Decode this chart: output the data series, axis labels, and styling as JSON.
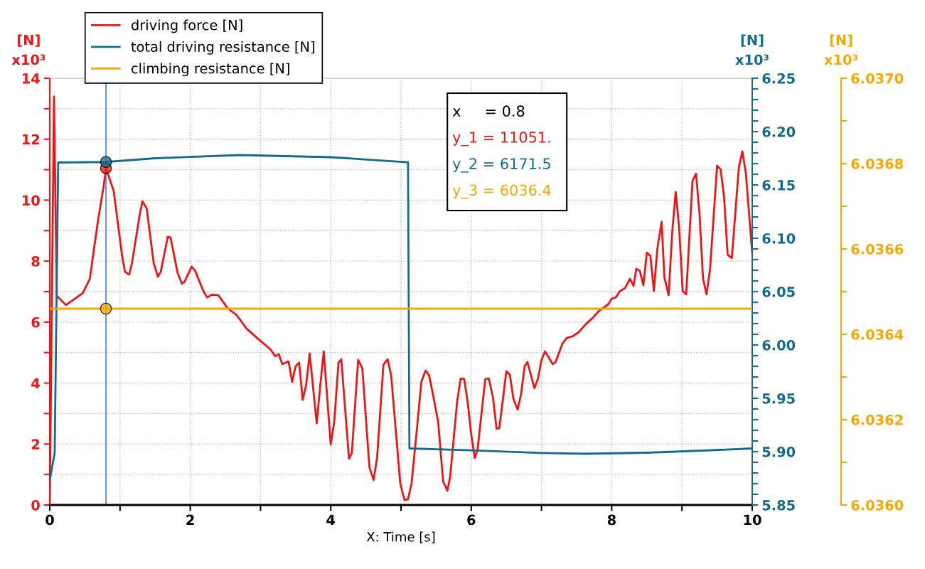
{
  "chart_data": {
    "type": "line",
    "xlabel": "X: Time [s]",
    "ylabel": "[N]\nx10³",
    "y2label": "[N]\nx10³",
    "y3label": "[N]\nx10³",
    "legend": "top left",
    "grid": true,
    "line_style": "solid",
    "marker": "none",
    "xlim": [
      0,
      10
    ],
    "xticks": [
      0,
      {
        "value": 1,
        "label": null
      },
      2,
      {
        "value": 3,
        "label": null
      },
      4,
      {
        "value": 5,
        "label": null
      },
      6,
      {
        "value": 7,
        "label": null
      },
      8,
      {
        "value": 9,
        "label": null
      },
      10
    ],
    "ylim": [
      0,
      14
    ],
    "yticks": [
      0,
      {
        "value": 1,
        "label": null
      },
      2,
      {
        "value": 3,
        "label": null
      },
      4,
      {
        "value": 5,
        "label": null
      },
      6,
      {
        "value": 7,
        "label": null
      },
      8,
      {
        "value": 9,
        "label": null
      },
      10,
      {
        "value": 11,
        "label": null
      },
      12,
      {
        "value": 13,
        "label": null
      },
      14
    ],
    "y2lim": [
      5.85,
      6.25
    ],
    "y2ticks": [
      {
        "value": 5.85,
        "label": "5.85"
      },
      {
        "value": 5.86,
        "label": null
      },
      {
        "value": 5.87,
        "label": null
      },
      {
        "value": 5.88,
        "label": null
      },
      {
        "value": 5.89,
        "label": null
      },
      {
        "value": 5.9,
        "label": "5.90"
      },
      {
        "value": 5.91,
        "label": null
      },
      {
        "value": 5.92,
        "label": null
      },
      {
        "value": 5.93,
        "label": null
      },
      {
        "value": 5.94,
        "label": null
      },
      {
        "value": 5.95,
        "label": "5.95"
      },
      {
        "value": 5.96,
        "label": null
      },
      {
        "value": 5.97,
        "label": null
      },
      {
        "value": 5.98,
        "label": null
      },
      {
        "value": 5.99,
        "label": null
      },
      {
        "value": 6.0,
        "label": "6.00"
      },
      {
        "value": 6.01,
        "label": null
      },
      {
        "value": 6.02,
        "label": null
      },
      {
        "value": 6.03,
        "label": null
      },
      {
        "value": 6.04,
        "label": null
      },
      {
        "value": 6.05,
        "label": "6.05"
      },
      {
        "value": 6.06,
        "label": null
      },
      {
        "value": 6.07,
        "label": null
      },
      {
        "value": 6.08,
        "label": null
      },
      {
        "value": 6.09,
        "label": null
      },
      {
        "value": 6.1,
        "label": "6.10"
      },
      {
        "value": 6.11,
        "label": null
      },
      {
        "value": 6.12,
        "label": null
      },
      {
        "value": 6.13,
        "label": null
      },
      {
        "value": 6.14,
        "label": null
      },
      {
        "value": 6.15,
        "label": "6.15"
      },
      {
        "value": 6.16,
        "label": null
      },
      {
        "value": 6.17,
        "label": null
      },
      {
        "value": 6.18,
        "label": null
      },
      {
        "value": 6.19,
        "label": null
      },
      {
        "value": 6.2,
        "label": "6.20"
      },
      {
        "value": 6.21,
        "label": null
      },
      {
        "value": 6.22,
        "label": null
      },
      {
        "value": 6.23,
        "label": null
      },
      {
        "value": 6.24,
        "label": null
      },
      {
        "value": 6.25,
        "label": "6.25"
      }
    ],
    "y3lim": [
      6.036,
      6.037
    ],
    "y3ticks": [
      {
        "value": 6.036,
        "label": "6.0360"
      },
      {
        "value": 6.0361,
        "label": null
      },
      {
        "value": 6.0362,
        "label": "6.0362"
      },
      {
        "value": 6.0363,
        "label": null
      },
      {
        "value": 6.0364,
        "label": "6.0364"
      },
      {
        "value": 6.0365,
        "label": null
      },
      {
        "value": 6.0366,
        "label": "6.0366"
      },
      {
        "value": 6.0367,
        "label": null
      },
      {
        "value": 6.0368,
        "label": "6.0368"
      },
      {
        "value": 6.0369,
        "label": null
      },
      {
        "value": 6.037,
        "label": "6.0370"
      }
    ],
    "ref_lines": [
      {
        "axis": "x",
        "value": 0.8,
        "color": "#4a90d9",
        "line_style": "solid"
      }
    ],
    "annotations": [
      "x     = 0.8",
      "y_1 = 11051.",
      "y_2 = 6171.5",
      "y_3 = 6036.4"
    ],
    "series": [
      {
        "name": "driving force [N]",
        "color": "#f01414",
        "x": [
          0,
          0.06,
          0.1,
          0.23,
          0.47,
          0.57,
          0.69,
          0.77,
          0.8,
          0.91,
          1.03,
          1.07,
          1.13,
          1.17,
          1.28,
          1.32,
          1.38,
          1.48,
          1.54,
          1.58,
          1.68,
          1.72,
          1.82,
          1.88,
          1.92,
          2.02,
          2.07,
          2.19,
          2.24,
          2.31,
          2.4,
          2.53,
          2.66,
          2.8,
          2.97,
          3.14,
          3.21,
          3.26,
          3.31,
          3.4,
          3.45,
          3.5,
          3.55,
          3.6,
          3.65,
          3.7,
          3.8,
          3.85,
          3.9,
          4.0,
          4.05,
          4.11,
          4.15,
          4.26,
          4.3,
          4.39,
          4.45,
          4.55,
          4.61,
          4.66,
          4.75,
          4.81,
          4.86,
          4.99,
          5.05,
          5.1,
          5.15,
          5.23,
          5.29,
          5.35,
          5.4,
          5.45,
          5.53,
          5.6,
          5.66,
          5.7,
          5.8,
          5.85,
          5.9,
          5.95,
          6.0,
          6.05,
          6.09,
          6.2,
          6.25,
          6.31,
          6.36,
          6.4,
          6.5,
          6.55,
          6.6,
          6.66,
          6.71,
          6.76,
          6.8,
          6.9,
          6.95,
          7.0,
          7.05,
          7.16,
          7.2,
          7.3,
          7.36,
          7.44,
          7.53,
          7.63,
          7.73,
          7.82,
          7.95,
          8.0,
          8.06,
          8.11,
          8.19,
          8.26,
          8.31,
          8.35,
          8.4,
          8.45,
          8.5,
          8.55,
          8.6,
          8.65,
          8.71,
          8.75,
          8.81,
          8.86,
          8.91,
          8.96,
          9.01,
          9.06,
          9.15,
          9.2,
          9.25,
          9.3,
          9.35,
          9.4,
          9.5,
          9.55,
          9.6,
          9.65,
          9.71,
          9.81,
          9.86,
          9.91,
          10.0
        ],
        "values": [
          0,
          13.4,
          6.86,
          6.56,
          6.95,
          7.42,
          9.38,
          10.5,
          11.05,
          10.3,
          8.17,
          7.65,
          7.56,
          7.93,
          9.52,
          9.96,
          9.73,
          7.93,
          7.49,
          7.65,
          8.8,
          8.77,
          7.61,
          7.26,
          7.33,
          7.82,
          7.68,
          7.0,
          6.81,
          6.9,
          6.88,
          6.46,
          6.23,
          5.79,
          5.44,
          5.11,
          4.88,
          4.95,
          4.62,
          4.71,
          4.04,
          4.55,
          4.67,
          3.45,
          3.94,
          4.97,
          2.68,
          3.9,
          5.04,
          1.98,
          2.73,
          4.67,
          4.78,
          1.52,
          1.7,
          4.76,
          4.48,
          1.24,
          0.82,
          1.56,
          4.6,
          4.78,
          4.25,
          0.7,
          0.16,
          0.19,
          0.7,
          2.57,
          4.04,
          4.41,
          4.25,
          3.69,
          2.71,
          0.77,
          0.47,
          0.93,
          3.41,
          4.15,
          4.13,
          3.36,
          2.31,
          1.54,
          1.82,
          4.13,
          4.15,
          3.52,
          2.5,
          2.52,
          4.39,
          4.27,
          3.48,
          3.13,
          3.64,
          4.55,
          4.69,
          3.83,
          4.15,
          4.76,
          5.04,
          4.62,
          4.69,
          5.3,
          5.48,
          5.53,
          5.67,
          5.93,
          6.14,
          6.37,
          6.58,
          6.77,
          6.81,
          7.0,
          7.12,
          7.42,
          7.19,
          7.75,
          7.68,
          7.21,
          8.28,
          8.17,
          7.02,
          8.42,
          9.29,
          7.47,
          6.88,
          8.91,
          10.27,
          9.08,
          7.02,
          6.91,
          10.64,
          10.87,
          9.54,
          7.42,
          6.91,
          7.75,
          11.13,
          11.01,
          10.08,
          8.21,
          8.1,
          11.08,
          11.6,
          10.87,
          8.26
        ]
      },
      {
        "name": "total driving resistance [N]",
        "color": "#156b8c",
        "axis": "y2",
        "x": [
          0,
          0.07,
          0.12,
          0.8,
          1.5,
          2.7,
          4.0,
          5.1,
          5.12,
          6.0,
          7.0,
          7.6,
          8.5,
          9.3,
          10.0
        ],
        "values": [
          5.873,
          5.899,
          6.171,
          6.1715,
          6.175,
          6.178,
          6.176,
          6.1713,
          5.903,
          5.9013,
          5.8987,
          5.898,
          5.899,
          5.901,
          5.903
        ]
      },
      {
        "name": "climbing resistance [N]",
        "color": "#f5a800",
        "axis": "y3",
        "x": [
          0,
          10
        ],
        "values": [
          6.03646,
          6.03646
        ]
      }
    ]
  }
}
